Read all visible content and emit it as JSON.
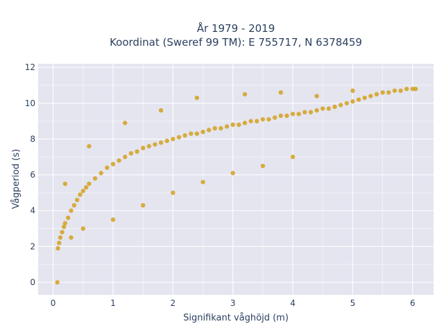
{
  "chart_data": {
    "type": "scatter",
    "title": "År 1979 - 2019",
    "subtitle": "Koordinat (Sweref 99 TM): E 755717, N 6378459",
    "xlabel": "Signifikant våghöjd (m)",
    "ylabel": "Vågperiod (s)",
    "xlim": [
      -0.25,
      6.35
    ],
    "ylim": [
      -0.7,
      12.2
    ],
    "x_ticks": [
      "0",
      "1",
      "2",
      "3",
      "4",
      "5",
      "6"
    ],
    "y_ticks": [
      "0",
      "2",
      "4",
      "6",
      "8",
      "10",
      "12"
    ],
    "x_tick_values": [
      0,
      1,
      2,
      3,
      4,
      5,
      6
    ],
    "y_tick_values": [
      0,
      2,
      4,
      6,
      8,
      10,
      12
    ],
    "grid": true,
    "legend": "none",
    "marker_color": "#D4A11E",
    "plot_background": "#E5E5F0",
    "series": [
      {
        "x": [
          0.08,
          0.1,
          0.12,
          0.15,
          0.18,
          0.2,
          0.25,
          0.3,
          0.35,
          0.4,
          0.45,
          0.5,
          0.55,
          0.6,
          0.7,
          0.8,
          0.9,
          1.0,
          1.1,
          1.2,
          1.3,
          1.4,
          1.5,
          1.6,
          1.7,
          1.8,
          1.9,
          2.0,
          2.1,
          2.2,
          2.3,
          2.4,
          2.5,
          2.6,
          2.7,
          2.8,
          2.9,
          3.0,
          3.1,
          3.2,
          3.3,
          3.4,
          3.5,
          3.6,
          3.7,
          3.8,
          3.9,
          4.0,
          4.1,
          4.2,
          4.3,
          4.4,
          4.5,
          4.6,
          4.7,
          4.8,
          4.9,
          5.0,
          5.1,
          5.2,
          5.3,
          5.4,
          5.5,
          5.6,
          5.7,
          5.8,
          5.9,
          6.0,
          6.05,
          0.07,
          0.3,
          0.5,
          1.0,
          1.5,
          2.0,
          2.5,
          3.0,
          3.5,
          4.0,
          0.2,
          0.6,
          1.2,
          1.8,
          2.4,
          3.2,
          3.8,
          4.4,
          5.0
        ],
        "y": [
          1.9,
          2.2,
          2.5,
          2.8,
          3.1,
          3.3,
          3.6,
          4.0,
          4.3,
          4.6,
          4.9,
          5.1,
          5.3,
          5.5,
          5.8,
          6.1,
          6.4,
          6.6,
          6.8,
          7.0,
          7.2,
          7.3,
          7.5,
          7.6,
          7.7,
          7.8,
          7.9,
          8.0,
          8.1,
          8.2,
          8.3,
          8.3,
          8.4,
          8.5,
          8.6,
          8.6,
          8.7,
          8.8,
          8.8,
          8.9,
          9.0,
          9.0,
          9.1,
          9.1,
          9.2,
          9.3,
          9.3,
          9.4,
          9.4,
          9.5,
          9.5,
          9.6,
          9.7,
          9.7,
          9.8,
          9.9,
          10.0,
          10.1,
          10.2,
          10.3,
          10.4,
          10.5,
          10.6,
          10.6,
          10.7,
          10.7,
          10.8,
          10.8,
          10.8,
          0.0,
          2.5,
          3.0,
          3.5,
          4.3,
          5.0,
          5.6,
          6.1,
          6.5,
          7.0,
          5.5,
          7.6,
          8.9,
          9.6,
          10.3,
          10.5,
          10.6,
          10.4,
          10.7
        ]
      }
    ]
  }
}
